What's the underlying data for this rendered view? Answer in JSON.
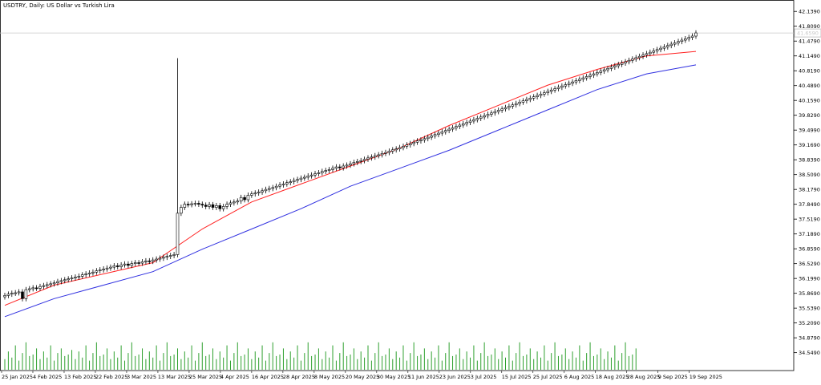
{
  "chart_data": {
    "type": "candlestick",
    "title": "USDTRY, Daily:  US Dollar vs Turkish Lira",
    "y_tick_labels": [
      "42.1390",
      "41.8090",
      "41.4790",
      "41.1490",
      "40.8190",
      "40.4890",
      "40.1590",
      "39.8290",
      "39.4990",
      "39.1690",
      "38.8390",
      "38.5090",
      "38.1790",
      "37.8490",
      "37.5190",
      "37.1890",
      "36.8590",
      "36.5290",
      "36.1990",
      "35.8690",
      "35.5390",
      "35.2090",
      "34.8790",
      "34.5490"
    ],
    "x_tick_labels": [
      "25 Jan 2025",
      "4 Feb 2025",
      "13 Feb 2025",
      "22 Feb 2025",
      "3 Mar 2025",
      "13 Mar 2025",
      "25 Mar 2025",
      "4 Apr 2025",
      "16 Apr 2025",
      "28 Apr 2025",
      "8 May 2025",
      "20 May 2025",
      "30 May 2025",
      "11 Jun 2025",
      "23 Jun 2025",
      "3 Jul 2025",
      "15 Jul 2025",
      "25 Jul 2025",
      "6 Aug 2025",
      "18 Aug 2025",
      "28 Aug 2025",
      "9 Sep 2025",
      "19 Sep 2025"
    ],
    "current_price_label": "41.6590",
    "ylim": [
      34.4,
      42.25
    ],
    "candles_open": [
      35.79,
      35.82,
      35.85,
      35.87,
      35.88,
      35.9,
      35.75,
      35.95,
      35.97,
      35.99,
      35.98,
      36.02,
      36.04,
      36.06,
      36.08,
      36.1,
      36.13,
      36.15,
      36.17,
      36.19,
      36.21,
      36.23,
      36.25,
      36.28,
      36.3,
      36.32,
      36.34,
      36.37,
      36.39,
      36.41,
      36.43,
      36.45,
      36.48,
      36.46,
      36.5,
      36.52,
      36.49,
      36.53,
      36.55,
      36.54,
      36.57,
      36.59,
      36.58,
      36.61,
      36.63,
      36.65,
      36.67,
      36.69,
      36.71,
      36.73,
      37.65,
      37.78,
      37.85,
      37.84,
      37.86,
      37.87,
      37.85,
      37.83,
      37.8,
      37.84,
      37.78,
      37.82,
      37.75,
      37.8,
      37.85,
      37.88,
      37.9,
      37.92,
      38.0,
      37.95,
      38.05,
      38.08,
      38.1,
      38.12,
      38.15,
      38.18,
      38.2,
      38.22,
      38.25,
      38.28,
      38.3,
      38.33,
      38.35,
      38.38,
      38.4,
      38.43,
      38.45,
      38.48,
      38.5,
      38.53,
      38.55,
      38.58,
      38.6,
      38.62,
      38.65,
      38.68,
      38.66,
      38.7,
      38.72,
      38.75,
      38.78,
      38.8,
      38.82,
      38.85,
      38.88,
      38.9,
      38.93,
      38.95,
      38.98,
      39.0,
      39.03,
      39.06,
      39.08,
      39.11,
      39.14,
      39.17,
      39.2,
      39.23,
      39.26,
      39.28,
      39.31,
      39.34,
      39.37,
      39.4,
      39.43,
      39.46,
      39.49,
      39.52,
      39.55,
      39.58,
      39.61,
      39.64,
      39.67,
      39.7,
      39.73,
      39.76,
      39.79,
      39.82,
      39.85,
      39.88,
      39.91,
      39.94,
      39.97,
      40.0,
      40.03,
      40.06,
      40.09,
      40.12,
      40.15,
      40.18,
      40.21,
      40.24,
      40.27,
      40.3,
      40.33,
      40.36,
      40.39,
      40.42,
      40.45,
      40.48,
      40.51,
      40.54,
      40.57,
      40.6,
      40.63,
      40.66,
      40.69,
      40.72,
      40.75,
      40.78,
      40.81,
      40.84,
      40.87,
      40.9,
      40.93,
      40.96,
      40.99,
      41.02,
      41.05,
      41.08,
      41.11,
      41.14,
      41.17,
      41.2,
      41.23,
      41.26,
      41.29,
      41.32,
      41.35,
      41.38,
      41.41,
      41.44,
      41.47,
      41.5,
      41.53,
      41.56,
      41.59
    ],
    "candles_close": [
      35.82,
      35.85,
      35.87,
      35.88,
      35.9,
      35.75,
      35.95,
      35.97,
      35.99,
      35.98,
      36.02,
      36.04,
      36.06,
      36.08,
      36.1,
      36.13,
      36.15,
      36.17,
      36.19,
      36.21,
      36.23,
      36.25,
      36.28,
      36.3,
      36.32,
      36.34,
      36.37,
      36.39,
      36.41,
      36.43,
      36.45,
      36.48,
      36.46,
      36.5,
      36.52,
      36.49,
      36.53,
      36.55,
      36.54,
      36.57,
      36.59,
      36.58,
      36.61,
      36.63,
      36.65,
      36.67,
      36.69,
      36.71,
      36.73,
      37.65,
      37.78,
      37.85,
      37.84,
      37.86,
      37.87,
      37.85,
      37.83,
      37.8,
      37.84,
      37.78,
      37.82,
      37.75,
      37.8,
      37.85,
      37.88,
      37.9,
      37.92,
      38.0,
      37.95,
      38.05,
      38.08,
      38.1,
      38.12,
      38.15,
      38.18,
      38.2,
      38.22,
      38.25,
      38.28,
      38.3,
      38.33,
      38.35,
      38.38,
      38.4,
      38.43,
      38.45,
      38.48,
      38.5,
      38.53,
      38.55,
      38.58,
      38.6,
      38.62,
      38.65,
      38.68,
      38.66,
      38.7,
      38.72,
      38.75,
      38.78,
      38.8,
      38.82,
      38.85,
      38.88,
      38.9,
      38.93,
      38.95,
      38.98,
      39.0,
      39.03,
      39.06,
      39.08,
      39.11,
      39.14,
      39.17,
      39.2,
      39.23,
      39.26,
      39.28,
      39.31,
      39.34,
      39.37,
      39.4,
      39.43,
      39.46,
      39.49,
      39.52,
      39.55,
      39.58,
      39.61,
      39.64,
      39.67,
      39.7,
      39.73,
      39.76,
      39.79,
      39.82,
      39.85,
      39.88,
      39.91,
      39.94,
      39.97,
      40.0,
      40.03,
      40.06,
      40.09,
      40.12,
      40.15,
      40.18,
      40.21,
      40.24,
      40.27,
      40.3,
      40.33,
      40.36,
      40.39,
      40.42,
      40.45,
      40.48,
      40.51,
      40.54,
      40.57,
      40.6,
      40.63,
      40.66,
      40.69,
      40.72,
      40.75,
      40.78,
      40.81,
      40.84,
      40.87,
      40.9,
      40.93,
      40.96,
      40.99,
      41.02,
      41.05,
      41.08,
      41.11,
      41.14,
      41.17,
      41.2,
      41.23,
      41.26,
      41.29,
      41.32,
      41.35,
      41.38,
      41.41,
      41.44,
      41.47,
      41.5,
      41.53,
      41.56,
      41.59,
      41.66
    ],
    "ma_fast": [
      35.6,
      36.05,
      36.3,
      36.55,
      37.3,
      37.9,
      38.3,
      38.7,
      39.1,
      39.6,
      40.05,
      40.5,
      40.85,
      41.15,
      41.25
    ],
    "ma_slow": [
      35.35,
      35.75,
      36.05,
      36.35,
      36.85,
      37.3,
      37.75,
      38.25,
      38.65,
      39.05,
      39.5,
      39.95,
      40.4,
      40.75,
      40.95
    ],
    "spike_high": 41.1,
    "volume_values": [
      0.35,
      0.6,
      0.4,
      0.8,
      0.3,
      0.55,
      0.9,
      0.45,
      0.5,
      0.7,
      0.35,
      0.6,
      0.4,
      0.8,
      0.3,
      0.55,
      0.7,
      0.45,
      0.5,
      0.65,
      0.35,
      0.6,
      0.4,
      0.8,
      0.3,
      0.55,
      0.9,
      0.45,
      0.5,
      0.7,
      0.35,
      0.6,
      0.4,
      0.8,
      0.3,
      0.55,
      0.9,
      0.45,
      0.5,
      0.7,
      0.35,
      0.6,
      0.4,
      0.8,
      0.3,
      0.55,
      0.9,
      0.45,
      0.5,
      0.7,
      0.35,
      0.6,
      0.4,
      0.8,
      0.3,
      0.55,
      0.9,
      0.45,
      0.5,
      0.7,
      0.35,
      0.6,
      0.4,
      0.8,
      0.3,
      0.55,
      0.9,
      0.45,
      0.5,
      0.7,
      0.35,
      0.6,
      0.4,
      0.8,
      0.3,
      0.55,
      0.9,
      0.45,
      0.5,
      0.7,
      0.35,
      0.6,
      0.4,
      0.8,
      0.3,
      0.55,
      0.9,
      0.45,
      0.5,
      0.7,
      0.35,
      0.6,
      0.4,
      0.8,
      0.3,
      0.55,
      0.9,
      0.45,
      0.5,
      0.7,
      0.35,
      0.6,
      0.4,
      0.8,
      0.3,
      0.55,
      0.9,
      0.45,
      0.5,
      0.7,
      0.35,
      0.6,
      0.4,
      0.8,
      0.3,
      0.55,
      0.9,
      0.45,
      0.5,
      0.7,
      0.35,
      0.6,
      0.4,
      0.8,
      0.3,
      0.55,
      0.9,
      0.45,
      0.5,
      0.7,
      0.35,
      0.6,
      0.4,
      0.8,
      0.3,
      0.55,
      0.9,
      0.45,
      0.5,
      0.7,
      0.35,
      0.6,
      0.4,
      0.8,
      0.3,
      0.55,
      0.9,
      0.45,
      0.5,
      0.7,
      0.35,
      0.6,
      0.4,
      0.8,
      0.3,
      0.55,
      0.9,
      0.45,
      0.5,
      0.7,
      0.35,
      0.6,
      0.4,
      0.8,
      0.3,
      0.55,
      0.9,
      0.45,
      0.5,
      0.7,
      0.35,
      0.6,
      0.4,
      0.8,
      0.3,
      0.55,
      0.9,
      0.45,
      0.5,
      0.7
    ],
    "colors": {
      "ma_fast": "#ff2020",
      "ma_slow": "#3030e0",
      "volume": "#2ea02e",
      "grid": "#d0d0d0",
      "candle": "#000000",
      "bg": "#ffffff"
    }
  }
}
